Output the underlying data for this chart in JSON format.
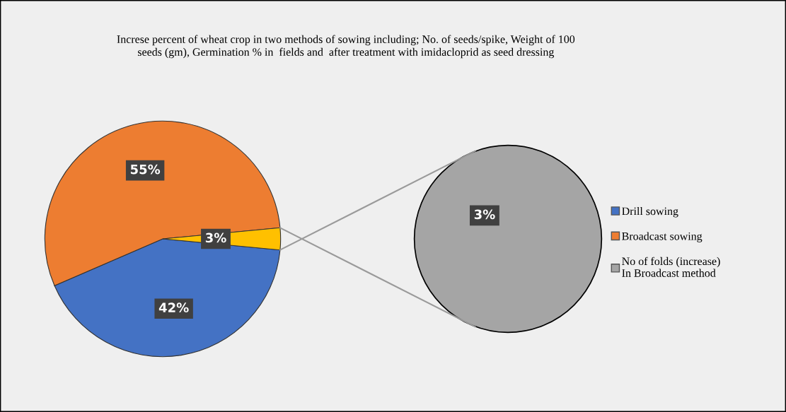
{
  "chart_data": [
    {
      "type": "pie",
      "title": "Increse percent of wheat crop in two methods of sowing including; No. of seeds/spike, Weight of 100\nseeds (gm), Germination % in  fields and  after treatment with imidacloprid as seed dressing",
      "categories": [
        "Drill sowing",
        "Broadcast sowing",
        null
      ],
      "values": [
        42,
        55,
        3
      ],
      "colors": [
        "#4472c4",
        "#ed7d31",
        "#ffc000"
      ],
      "value_labels": [
        "42%",
        "55%",
        "3%"
      ],
      "legend": "right"
    },
    {
      "type": "pie",
      "categories": [
        "No of folds (increase)\nIn Broadcast method"
      ],
      "values": [
        3
      ],
      "colors": [
        "#a5a5a5"
      ],
      "value_labels": [
        "3%"
      ],
      "legend": "right"
    }
  ]
}
